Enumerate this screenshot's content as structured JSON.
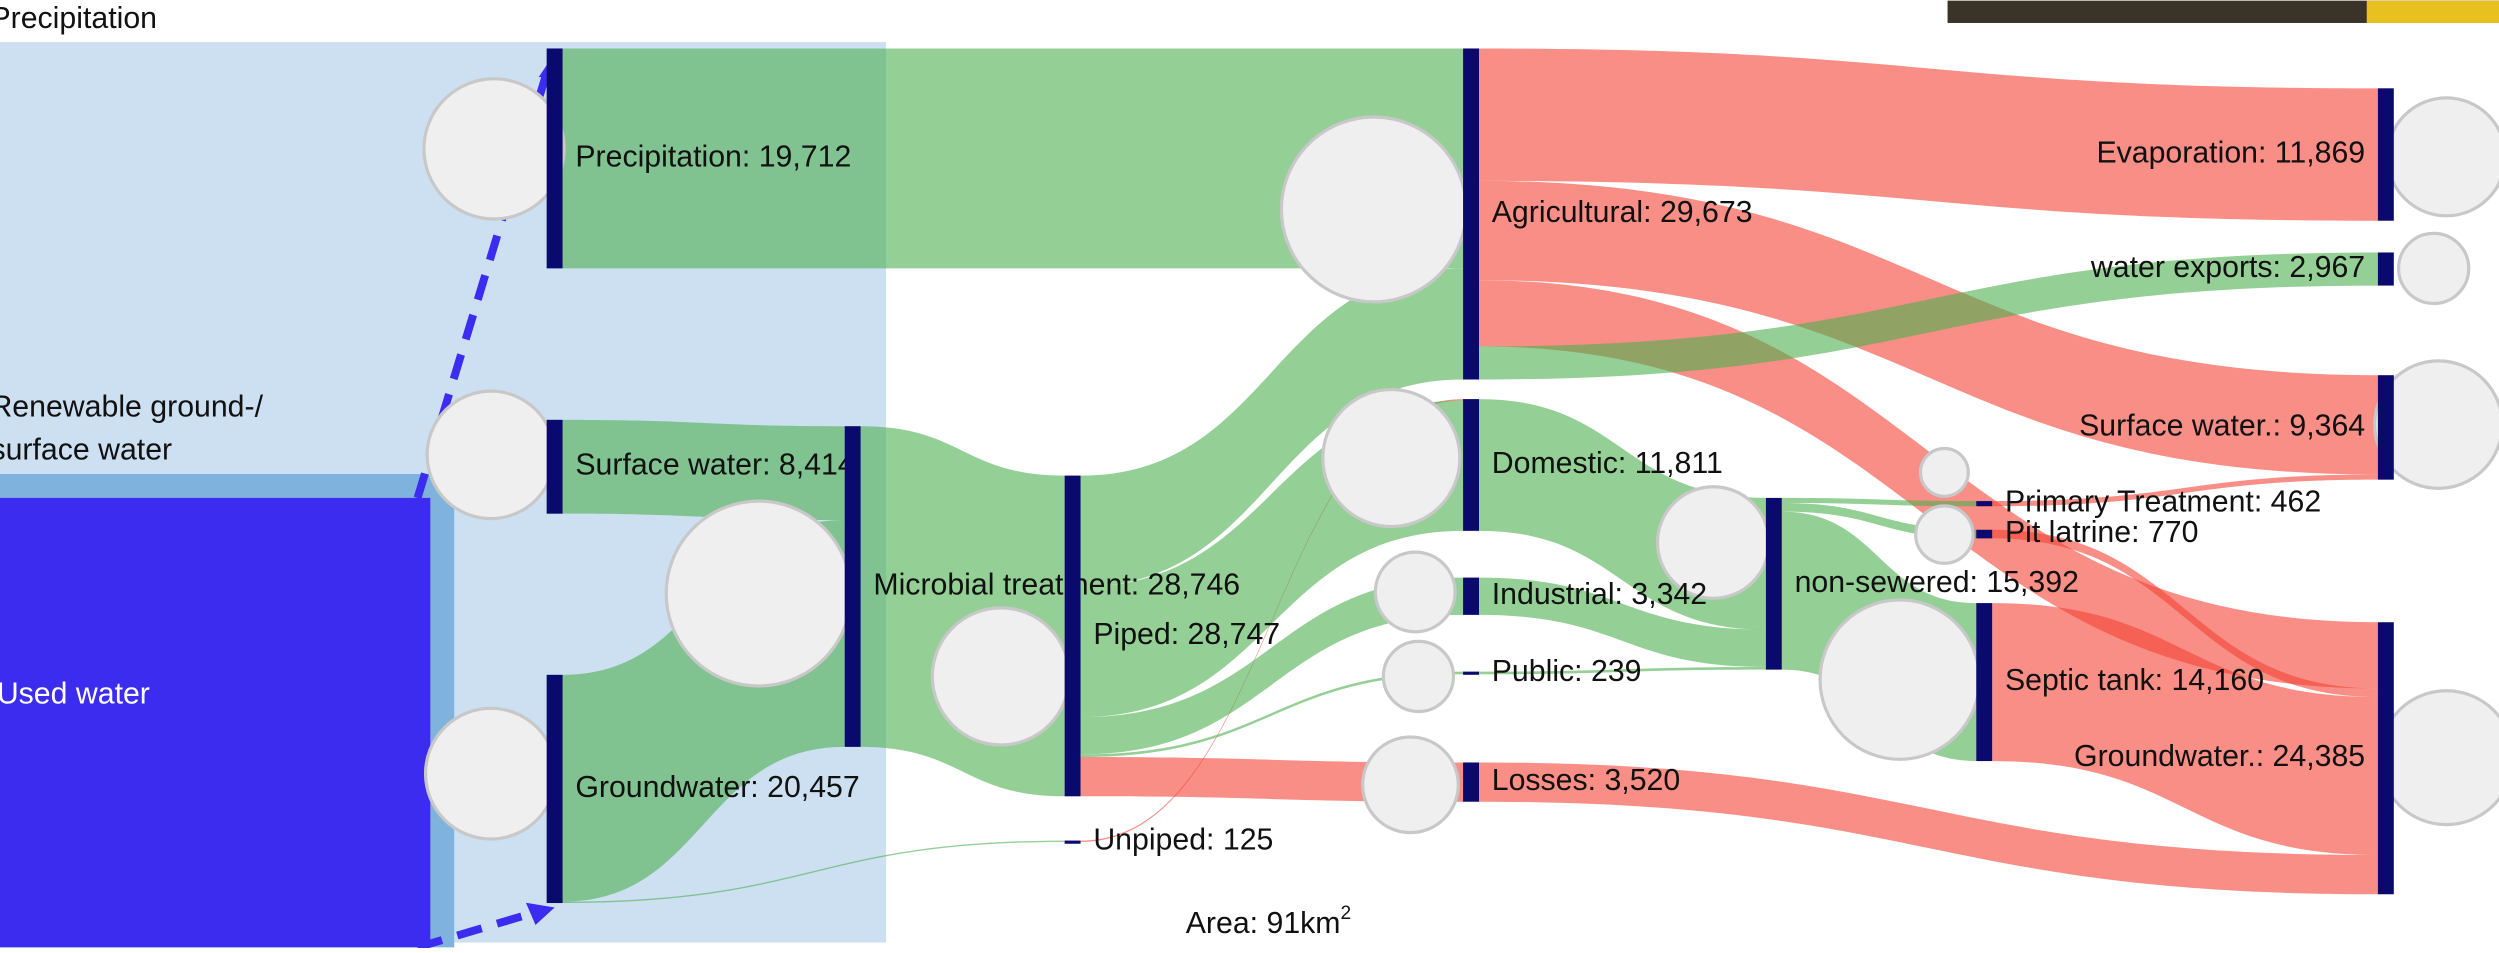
{
  "background_labels": {
    "precipitation": "Precipitation",
    "renewable": [
      "Renewable ground-/",
      "surface water"
    ],
    "used": "Used water"
  },
  "area": {
    "text": "Area: 91km",
    "sup": "2"
  },
  "nodes": [
    {
      "label": "Precipitation: 19,712",
      "value": 19712
    },
    {
      "label": "Surface water: 8,414",
      "value": 8414
    },
    {
      "label": "Groundwater: 20,457",
      "value": 20457
    },
    {
      "label": "Microbial treatment: 28,746",
      "value": 28746
    },
    {
      "label": "Unpiped: 125",
      "value": 125
    },
    {
      "label": "Piped: 28,747",
      "value": 28747
    },
    {
      "label": "Agricultural: 29,673",
      "value": 29673
    },
    {
      "label": "Domestic: 11,811",
      "value": 11811
    },
    {
      "label": "Industrial: 3,342",
      "value": 3342
    },
    {
      "label": "Public: 239",
      "value": 239
    },
    {
      "label": "Losses: 3,520",
      "value": 3520
    },
    {
      "label": "non-sewered: 15,392",
      "value": 15392
    },
    {
      "label": "Primary Treatment: 462",
      "value": 462
    },
    {
      "label": "Pit latrine: 770",
      "value": 770
    },
    {
      "label": "Septic tank: 14,160",
      "value": 14160
    },
    {
      "label": "Evaporation: 11,869",
      "value": 11869
    },
    {
      "label": "water exports: 2,967",
      "value": 2967
    },
    {
      "label": "Surface water.: 9,364",
      "value": 9364
    },
    {
      "label": "Groundwater.: 24,385",
      "value": 24385
    }
  ],
  "links": [
    {
      "source": 0,
      "target": 6,
      "value": 19712,
      "color": "#4caf50"
    },
    {
      "source": 1,
      "target": 3,
      "value": 8414,
      "color": "#4caf50"
    },
    {
      "source": 2,
      "target": 3,
      "value": 20332,
      "color": "#4caf50"
    },
    {
      "source": 2,
      "target": 4,
      "value": 125,
      "color": "#4caf50"
    },
    {
      "source": 3,
      "target": 5,
      "value": 28746,
      "color": "#4caf50"
    },
    {
      "source": 5,
      "target": 6,
      "value": 9960,
      "color": "#4caf50"
    },
    {
      "source": 4,
      "target": 7,
      "value": 125,
      "color": "#f44336"
    },
    {
      "source": 5,
      "target": 7,
      "value": 11686,
      "color": "#4caf50"
    },
    {
      "source": 5,
      "target": 8,
      "value": 3342,
      "color": "#4caf50"
    },
    {
      "source": 5,
      "target": 9,
      "value": 239,
      "color": "#4caf50"
    },
    {
      "source": 5,
      "target": 10,
      "value": 3520,
      "color": "#f44336"
    },
    {
      "source": 6,
      "target": 15,
      "value": 11869,
      "color": "#f44336"
    },
    {
      "source": 6,
      "target": 17,
      "value": 8902,
      "color": "#f44336"
    },
    {
      "source": 6,
      "target": 18,
      "value": 5935,
      "color": "#f44336"
    },
    {
      "source": 6,
      "target": 16,
      "value": 2967,
      "color": "#4caf50"
    },
    {
      "source": 7,
      "target": 11,
      "value": 11811,
      "color": "#4caf50"
    },
    {
      "source": 8,
      "target": 11,
      "value": 3342,
      "color": "#4caf50"
    },
    {
      "source": 9,
      "target": 11,
      "value": 239,
      "color": "#4caf50"
    },
    {
      "source": 11,
      "target": 12,
      "value": 462,
      "color": "#4caf50"
    },
    {
      "source": 11,
      "target": 13,
      "value": 770,
      "color": "#4caf50"
    },
    {
      "source": 11,
      "target": 14,
      "value": 14160,
      "color": "#4caf50"
    },
    {
      "source": 12,
      "target": 17,
      "value": 462,
      "color": "#f44336"
    },
    {
      "source": 13,
      "target": 18,
      "value": 770,
      "color": "#f44336"
    },
    {
      "source": 14,
      "target": 18,
      "value": 14160,
      "color": "#f44336"
    },
    {
      "source": 10,
      "target": 18,
      "value": 3520,
      "color": "#f44336"
    }
  ],
  "node_color": "#0a0a6e"
}
